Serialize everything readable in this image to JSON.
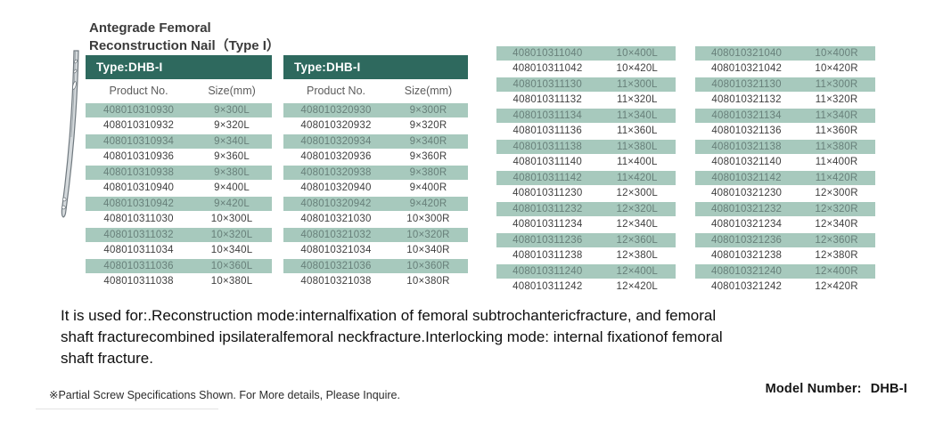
{
  "title": {
    "line1": "Antegrade Femoral",
    "line2": "Reconstruction Nail（Type I）"
  },
  "tables": [
    {
      "type_label": "Type:DHB-I",
      "columns": [
        "Product No.",
        "Size(mm)"
      ],
      "rows": [
        [
          "408010310930",
          "9×300L"
        ],
        [
          "408010310932",
          "9×320L"
        ],
        [
          "408010310934",
          "9×340L"
        ],
        [
          "408010310936",
          "9×360L"
        ],
        [
          "408010310938",
          "9×380L"
        ],
        [
          "408010310940",
          "9×400L"
        ],
        [
          "408010310942",
          "9×420L"
        ],
        [
          "408010311030",
          "10×300L"
        ],
        [
          "408010311032",
          "10×320L"
        ],
        [
          "408010311034",
          "10×340L"
        ],
        [
          "408010311036",
          "10×360L"
        ],
        [
          "408010311038",
          "10×380L"
        ]
      ]
    },
    {
      "type_label": "Type:DHB-I",
      "columns": [
        "Product No.",
        "Size(mm)"
      ],
      "rows": [
        [
          "408010320930",
          "9×300R"
        ],
        [
          "408010320932",
          "9×320R"
        ],
        [
          "408010320934",
          "9×340R"
        ],
        [
          "408010320936",
          "9×360R"
        ],
        [
          "408010320938",
          "9×380R"
        ],
        [
          "408010320940",
          "9×400R"
        ],
        [
          "408010320942",
          "9×420R"
        ],
        [
          "408010321030",
          "10×300R"
        ],
        [
          "408010321032",
          "10×320R"
        ],
        [
          "408010321034",
          "10×340R"
        ],
        [
          "408010321036",
          "10×360R"
        ],
        [
          "408010321038",
          "10×380R"
        ]
      ]
    },
    {
      "rows": [
        [
          "408010311040",
          "10×400L"
        ],
        [
          "408010311042",
          "10×420L"
        ],
        [
          "408010311130",
          "11×300L"
        ],
        [
          "408010311132",
          "11×320L"
        ],
        [
          "408010311134",
          "11×340L"
        ],
        [
          "408010311136",
          "11×360L"
        ],
        [
          "408010311138",
          "11×380L"
        ],
        [
          "408010311140",
          "11×400L"
        ],
        [
          "408010311142",
          "11×420L"
        ],
        [
          "408010311230",
          "12×300L"
        ],
        [
          "408010311232",
          "12×320L"
        ],
        [
          "408010311234",
          "12×340L"
        ],
        [
          "408010311236",
          "12×360L"
        ],
        [
          "408010311238",
          "12×380L"
        ],
        [
          "408010311240",
          "12×400L"
        ],
        [
          "408010311242",
          "12×420L"
        ]
      ]
    },
    {
      "rows": [
        [
          "408010321040",
          "10×400R"
        ],
        [
          "408010321042",
          "10×420R"
        ],
        [
          "408010321130",
          "11×300R"
        ],
        [
          "408010321132",
          "11×320R"
        ],
        [
          "408010321134",
          "11×340R"
        ],
        [
          "408010321136",
          "11×360R"
        ],
        [
          "408010321138",
          "11×380R"
        ],
        [
          "408010321140",
          "11×400R"
        ],
        [
          "408010321142",
          "11×420R"
        ],
        [
          "408010321230",
          "12×300R"
        ],
        [
          "408010321232",
          "12×320R"
        ],
        [
          "408010321234",
          "12×340R"
        ],
        [
          "408010321236",
          "12×360R"
        ],
        [
          "408010321238",
          "12×380R"
        ],
        [
          "408010321240",
          "12×400R"
        ],
        [
          "408010321242",
          "12×420R"
        ]
      ]
    }
  ],
  "description": "It is used for:.Reconstruction mode:internalfixation of femoral subtrochantericfracture, and femoral shaft fracturecombined ipsilateralfemoral neckfracture.Interlocking mode: internal fixationof femoral shaft fracture.",
  "footnote": "※Partial Screw Specifications Shown. For More details, Please Inquire.",
  "model": {
    "label": "Model Number:",
    "value": "DHB-I"
  },
  "illustration": "antegrade-femoral-nail-drawing",
  "colors": {
    "header_teal": "#2e695e",
    "row_green": "#a7c9bd"
  }
}
